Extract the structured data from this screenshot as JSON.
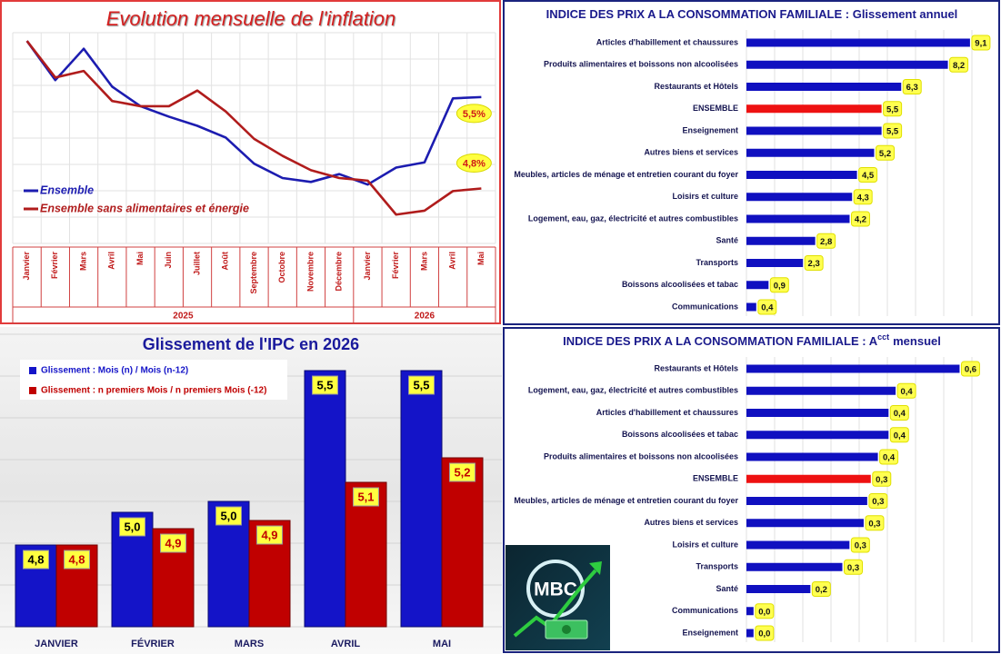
{
  "chart_data": [
    {
      "type": "line",
      "title": "Evolution mensuelle de l'inflation",
      "category_groups": [
        {
          "label": "2025",
          "categories": [
            "Janvier",
            "Février",
            "Mars",
            "Avril",
            "Mai",
            "Juin",
            "Juillet",
            "Août",
            "Septembre",
            "Octobre",
            "Novembre",
            "Décembre"
          ]
        },
        {
          "label": "2026",
          "categories": [
            "Janvier",
            "Février",
            "Mars",
            "Avril",
            "Mai"
          ]
        }
      ],
      "ylim": [
        4.4,
        6.0
      ],
      "legend": "left",
      "series": [
        {
          "name": "Ensemble",
          "color": "#1c1cb0",
          "values": [
            5.93,
            5.63,
            5.87,
            5.58,
            5.43,
            5.35,
            5.28,
            5.19,
            4.99,
            4.88,
            4.85,
            4.91,
            4.83,
            4.96,
            5.0,
            5.49,
            5.5
          ],
          "value_labels": [
            null,
            null,
            null,
            null,
            null,
            null,
            null,
            null,
            null,
            null,
            null,
            null,
            null,
            null,
            null,
            null,
            "5,5%"
          ]
        },
        {
          "name": "Ensemble sans alimentaires et énergie",
          "color": "#b01c1c",
          "values": [
            5.93,
            5.65,
            5.7,
            5.47,
            5.43,
            5.43,
            5.55,
            5.39,
            5.18,
            5.05,
            4.94,
            4.88,
            4.86,
            4.6,
            4.63,
            4.78,
            4.8
          ],
          "value_labels": [
            null,
            null,
            null,
            null,
            null,
            null,
            null,
            null,
            null,
            null,
            null,
            null,
            null,
            null,
            null,
            null,
            "4,8%"
          ]
        }
      ]
    },
    {
      "type": "hbar",
      "title": "INDICE DES PRIX A LA CONSOMMATION FAMILIALE : Glissement annuel",
      "categories": [
        "Articles d'habillement et chaussures",
        "Produits alimentaires et boissons non alcoolisées",
        "Restaurants et Hôtels",
        "ENSEMBLE",
        "Enseignement",
        "Autres biens et services",
        "Meubles, articles de ménage et entretien courant du foyer",
        "Loisirs et culture",
        "Logement, eau, gaz, électricité et autres combustibles",
        "Santé",
        "Transports",
        "Boissons alcoolisées et tabac",
        "Communications"
      ],
      "values": [
        9.1,
        8.2,
        6.3,
        5.5,
        5.5,
        5.2,
        4.5,
        4.3,
        4.2,
        2.8,
        2.3,
        0.9,
        0.4
      ],
      "value_labels": [
        "9,1",
        "8,2",
        "6,3",
        "5,5",
        "5,5",
        "5,2",
        "4,5",
        "4,3",
        "4,2",
        "2,8",
        "2,3",
        "0,9",
        "0,4"
      ],
      "colors": [
        "#1010c0",
        "#1010c0",
        "#1010c0",
        "#ee1111",
        "#1010c0",
        "#1010c0",
        "#1010c0",
        "#1010c0",
        "#1010c0",
        "#1010c0",
        "#1010c0",
        "#1010c0",
        "#1010c0"
      ],
      "xlim": [
        0,
        9.4
      ]
    },
    {
      "type": "grouped-bar",
      "title": "Glissement de l'IPC en 2026",
      "categories": [
        "JANVIER",
        "FÉVRIER",
        "MARS",
        "AVRIL",
        "MAI"
      ],
      "ylim": [
        4.54,
        5.6
      ],
      "legend": "top-left",
      "series": [
        {
          "name": "Glissement : Mois (n) / Mois (n-12)",
          "color": "#1414c8",
          "values": [
            4.84,
            4.96,
            5.0,
            5.48,
            5.48
          ],
          "value_labels": [
            "4,8",
            "5,0",
            "5,0",
            "5,5",
            "5,5"
          ]
        },
        {
          "name": "Glissement : n premiers Mois / n premiers Mois (-12)",
          "color": "#c00000",
          "values": [
            4.84,
            4.9,
            4.93,
            5.07,
            5.16
          ],
          "value_labels": [
            "4,8",
            "4,9",
            "4,9",
            "5,1",
            "5,2"
          ]
        }
      ]
    },
    {
      "type": "hbar",
      "title": "INDICE DES PRIX A LA CONSOMMATION FAMILIALE : A",
      "title_superscript": "cct",
      "title_suffix": "mensuel",
      "categories": [
        "Restaurants et Hôtels",
        "Logement, eau, gaz, électricité et autres combustibles",
        "Articles d'habillement et chaussures",
        "Boissons alcoolisées et tabac",
        "Produits alimentaires et boissons non alcoolisées",
        "ENSEMBLE",
        "Meubles, articles de ménage et entretien courant du foyer",
        "Autres biens et services",
        "Loisirs et culture",
        "Transports",
        "Santé",
        "Communications",
        "Enseignement"
      ],
      "values": [
        0.6,
        0.42,
        0.4,
        0.4,
        0.37,
        0.35,
        0.34,
        0.33,
        0.29,
        0.27,
        0.18,
        0.02,
        0.02
      ],
      "value_labels": [
        "0,6",
        "0,4",
        "0,4",
        "0,4",
        "0,4",
        "0,3",
        "0,3",
        "0,3",
        "0,3",
        "0,3",
        "0,2",
        "0,0",
        "0,0"
      ],
      "colors": [
        "#1010c0",
        "#1010c0",
        "#1010c0",
        "#1010c0",
        "#1010c0",
        "#ee1111",
        "#1010c0",
        "#1010c0",
        "#1010c0",
        "#1010c0",
        "#1010c0",
        "#1010c0",
        "#1010c0"
      ],
      "xlim": [
        0,
        0.65
      ]
    }
  ],
  "logo": {
    "text": "MBC"
  }
}
